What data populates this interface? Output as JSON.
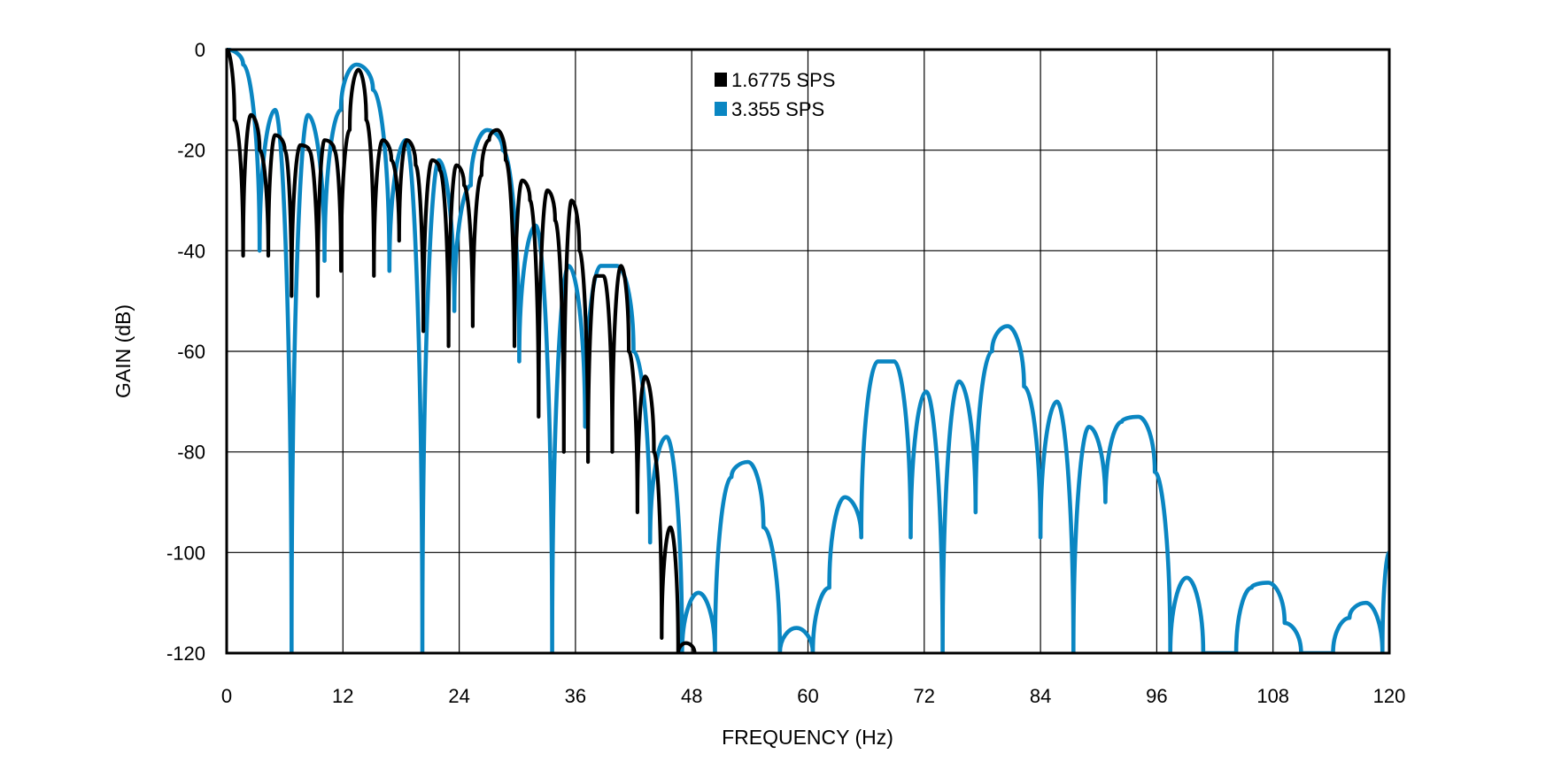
{
  "chart_data": {
    "type": "line",
    "title": "",
    "xlabel": "FREQUENCY (Hz)",
    "ylabel": "GAIN (dB)",
    "xlim": [
      0,
      120
    ],
    "ylim": [
      -120,
      0
    ],
    "grid": true,
    "x_ticks": [
      0,
      12,
      24,
      36,
      48,
      60,
      72,
      84,
      96,
      108,
      120
    ],
    "y_ticks": [
      0,
      -20,
      -40,
      -60,
      -80,
      -100,
      -120
    ],
    "x_tick_labels": [
      "0",
      "12",
      "24",
      "36",
      "48",
      "60",
      "72",
      "84",
      "96",
      "108",
      "120"
    ],
    "y_tick_labels": [
      "0",
      "-20",
      "-40",
      "-60",
      "-80",
      "-100",
      "-120"
    ],
    "legend_position": "top-center",
    "series": [
      {
        "name": "1.6775 SPS",
        "color": "#000000",
        "x": [
          0,
          0.8,
          1.7,
          2.5,
          3.4,
          4.3,
          5.0,
          6.0,
          6.7,
          7.6,
          8.5,
          9.4,
          10.1,
          11.1,
          11.8,
          12.7,
          13.6,
          14.4,
          15.2,
          16.1,
          17.0,
          17.8,
          18.6,
          19.5,
          20.3,
          21.2,
          22.0,
          22.9,
          23.7,
          24.5,
          25.4,
          26.3,
          27.1,
          27.9,
          28.8,
          29.7,
          30.5,
          31.3,
          32.2,
          33.1,
          33.9,
          34.8,
          35.6,
          36.4,
          37.3,
          38.1,
          38.9,
          39.8,
          40.7,
          41.5,
          42.4,
          43.2,
          44.1,
          44.9,
          45.8,
          46.6,
          47.4,
          48.3
        ],
        "values": [
          0,
          -14,
          -41,
          -13,
          -20,
          -41,
          -17,
          -20,
          -49,
          -19,
          -20,
          -49,
          -18,
          -20,
          -44,
          -16,
          -4,
          -14,
          -45,
          -18,
          -22,
          -38,
          -18,
          -23,
          -56,
          -22,
          -24,
          -59,
          -23,
          -27,
          -55,
          -25,
          -18,
          -16,
          -22,
          -59,
          -26,
          -30,
          -73,
          -28,
          -34,
          -80,
          -30,
          -40,
          -82,
          -45,
          -45,
          -80,
          -43,
          -60,
          -92,
          -65,
          -80,
          -117,
          -95,
          -120,
          -118,
          -120
        ]
      },
      {
        "name": "3.355 SPS",
        "color": "#0a86c2",
        "x": [
          0,
          1.7,
          3.4,
          5.0,
          6.7,
          8.4,
          10.1,
          11.8,
          13.4,
          15.1,
          16.8,
          18.5,
          20.2,
          21.9,
          23.5,
          25.2,
          26.9,
          28.5,
          30.2,
          31.9,
          33.6,
          35.3,
          37.0,
          38.6,
          40.3,
          42.0,
          43.7,
          45.4,
          47.0,
          48.7,
          50.4,
          52.1,
          53.8,
          55.4,
          57.1,
          58.8,
          60.5,
          62.2,
          63.8,
          65.5,
          67.2,
          68.9,
          70.6,
          72.2,
          73.9,
          75.6,
          77.3,
          79.0,
          80.6,
          82.3,
          84.0,
          85.7,
          87.4,
          89.0,
          90.7,
          92.4,
          94.1,
          95.8,
          97.4,
          99.1,
          100.8,
          102.5,
          104.2,
          105.8,
          107.5,
          109.2,
          110.9,
          112.6,
          114.2,
          115.9,
          117.6,
          119.3,
          120
        ],
        "values": [
          0,
          -3,
          -40,
          -12,
          -120,
          -13,
          -42,
          -12,
          -3,
          -8,
          -44,
          -18,
          -120,
          -22,
          -52,
          -27,
          -16,
          -20,
          -62,
          -35,
          -120,
          -43,
          -75,
          -43,
          -43,
          -60,
          -98,
          -77,
          -120,
          -108,
          -120,
          -85,
          -82,
          -95,
          -120,
          -115,
          -120,
          -107,
          -89,
          -97,
          -62,
          -62,
          -97,
          -68,
          -120,
          -66,
          -92,
          -60,
          -55,
          -67,
          -97,
          -70,
          -120,
          -75,
          -90,
          -74,
          -73,
          -84,
          -120,
          -105,
          -120,
          -120,
          -120,
          -107,
          -106,
          -114,
          -120,
          -120,
          -120,
          -113,
          -110,
          -120,
          -100
        ]
      }
    ]
  }
}
